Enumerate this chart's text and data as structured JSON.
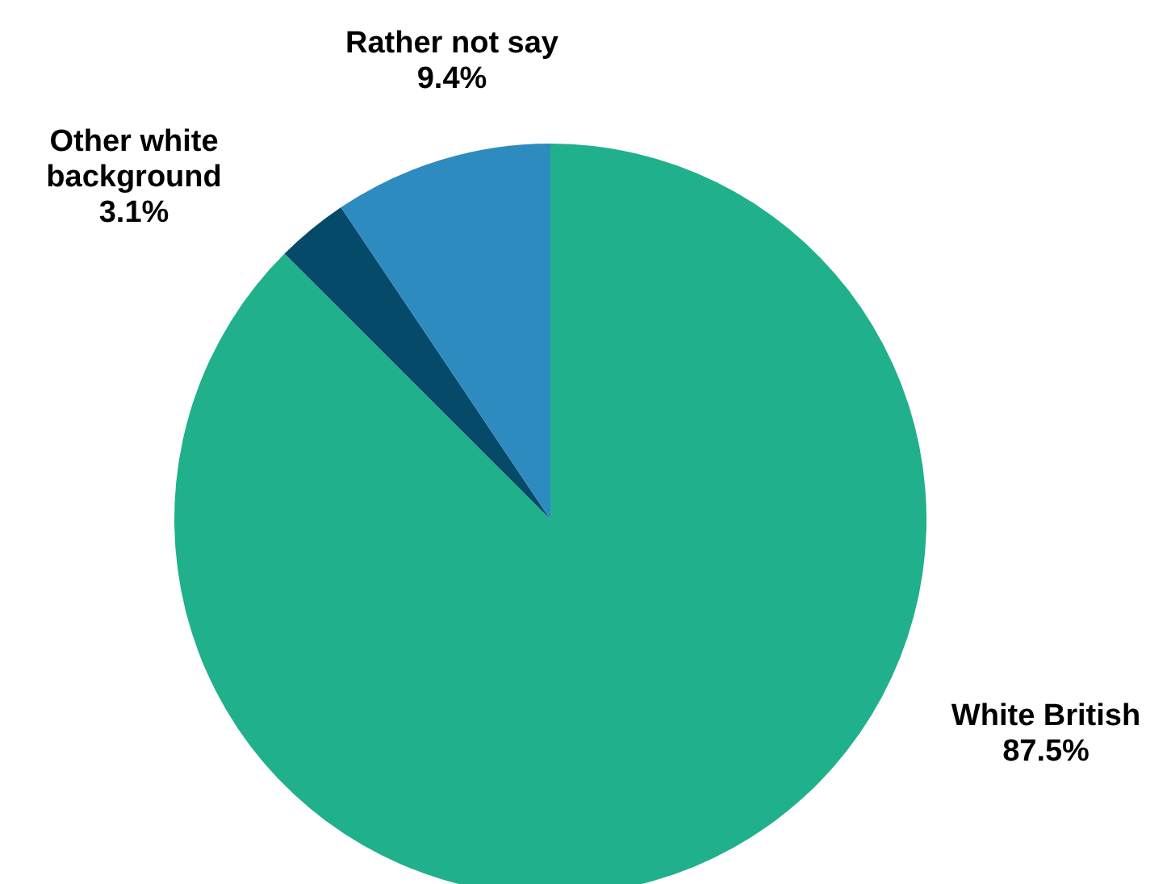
{
  "chart_data": {
    "type": "pie",
    "categories": [
      "White British",
      "Other white background",
      "Rather not say"
    ],
    "values": [
      87.5,
      3.1,
      9.4
    ],
    "colors": [
      "#20b08b",
      "#064a6a",
      "#2e8bbf"
    ],
    "value_labels": [
      "87.5%",
      "3.1%",
      "9.4%"
    ],
    "legend": false
  }
}
